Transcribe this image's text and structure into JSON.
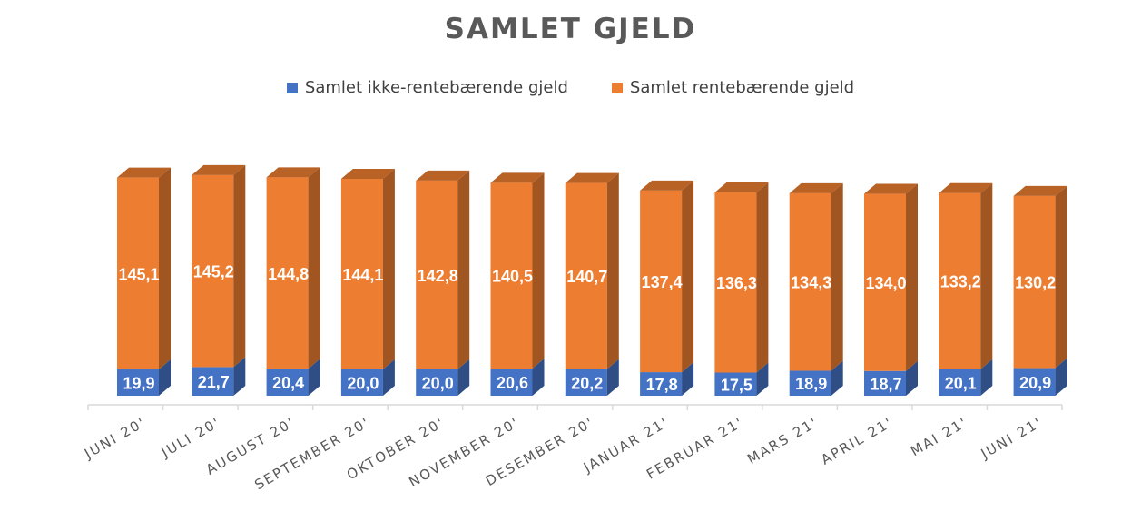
{
  "chart_data": {
    "type": "bar",
    "stacked": true,
    "title": "SAMLET GJELD",
    "categories": [
      "JUNI 20'",
      "JULI 20'",
      "AUGUST 20'",
      "SEPTEMBER 20'",
      "OKTOBER 20'",
      "NOVEMBER 20'",
      "DESEMBER 20'",
      "JANUAR 21'",
      "FEBRUAR 21'",
      "MARS 21'",
      "APRIL 21'",
      "MAI 21'",
      "JUNI 21'"
    ],
    "series": [
      {
        "name": "Samlet ikke-rentebærende gjeld",
        "color": "#4472c4",
        "values": [
          19.9,
          21.7,
          20.4,
          20.0,
          20.0,
          20.6,
          20.2,
          17.8,
          17.5,
          18.9,
          18.7,
          20.1,
          20.9
        ],
        "labels": [
          "19,9",
          "21,7",
          "20,4",
          "20,0",
          "20,0",
          "20,6",
          "20,2",
          "17,8",
          "17,5",
          "18,9",
          "18,7",
          "20,1",
          "20,9"
        ]
      },
      {
        "name": "Samlet rentebærende gjeld",
        "color": "#ed7d31",
        "values": [
          145.1,
          145.2,
          144.8,
          144.1,
          142.8,
          140.5,
          140.7,
          137.4,
          136.3,
          134.3,
          134.0,
          133.2,
          130.2
        ],
        "labels": [
          "145,1",
          "145,2",
          "144,8",
          "144,1",
          "142,8",
          "140,5",
          "140,7",
          "137,4",
          "136,3",
          "134,3",
          "134,0",
          "133,2",
          "130,2"
        ]
      }
    ],
    "legend_position": "top",
    "grid": false,
    "bar_style": "3d"
  }
}
